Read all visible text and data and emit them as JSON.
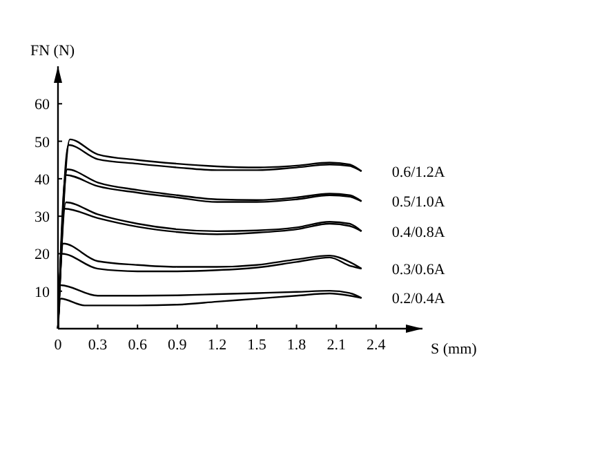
{
  "chart_data": {
    "type": "line",
    "xlabel": "S (mm)",
    "ylabel": "FN (N)",
    "xlim": [
      0,
      2.75
    ],
    "ylim": [
      0,
      70
    ],
    "xticks": [
      0,
      0.3,
      0.6,
      0.9,
      1.2,
      1.5,
      1.8,
      2.1,
      2.4
    ],
    "yticks": [
      {
        "value": 0,
        "label": null
      },
      10,
      20,
      30,
      40,
      50,
      60
    ],
    "grid": false,
    "legend": false,
    "marker": "none",
    "line_style": "solid",
    "series": [
      {
        "name": "0.2/0.4A",
        "color": "#000000",
        "x": [
          0,
          0.02,
          0.3,
          0.6,
          0.9,
          1.2,
          1.5,
          1.8,
          2.05,
          2.2,
          2.29
        ],
        "values": [
          0,
          11.6,
          8.8,
          8.8,
          8.9,
          9.2,
          9.5,
          9.8,
          10.1,
          9.5,
          8.2
        ]
      },
      {
        "color": "#000000",
        "x": [
          0,
          0.02,
          0.2,
          0.6,
          0.9,
          1.2,
          1.5,
          1.8,
          2.05,
          2.2,
          2.29
        ],
        "values": [
          0,
          8.0,
          6.2,
          6.2,
          6.4,
          7.2,
          8.0,
          8.8,
          9.4,
          8.8,
          8.2
        ]
      },
      {
        "name": "0.3/0.6A",
        "color": "#000000",
        "x": [
          0,
          0.04,
          0.3,
          0.6,
          0.9,
          1.2,
          1.5,
          1.8,
          2.05,
          2.2,
          2.29
        ],
        "values": [
          0,
          22.7,
          18,
          17,
          16.5,
          16.5,
          17,
          18.5,
          19.5,
          17.8,
          16
        ]
      },
      {
        "color": "#000000",
        "x": [
          0,
          0.03,
          0.3,
          0.6,
          0.9,
          1.2,
          1.5,
          1.8,
          2.05,
          2.2,
          2.29
        ],
        "values": [
          0,
          20,
          16,
          15.3,
          15.3,
          15.6,
          16.3,
          17.8,
          19,
          16.8,
          16
        ]
      },
      {
        "name": "0.4/0.8A",
        "color": "#000000",
        "x": [
          0,
          0.06,
          0.3,
          0.6,
          0.9,
          1.2,
          1.5,
          1.8,
          2.05,
          2.2,
          2.29
        ],
        "values": [
          0,
          33.7,
          30.5,
          28,
          26.5,
          26,
          26.2,
          27,
          28.5,
          28,
          26
        ]
      },
      {
        "color": "#000000",
        "x": [
          0,
          0.05,
          0.3,
          0.6,
          0.9,
          1.2,
          1.5,
          1.8,
          2.05,
          2.2,
          2.29
        ],
        "values": [
          0,
          32,
          29.5,
          27.2,
          25.8,
          25.2,
          25.6,
          26.5,
          28,
          27.4,
          26
        ]
      },
      {
        "name": "0.5/1.0A",
        "color": "#000000",
        "x": [
          0,
          0.07,
          0.3,
          0.6,
          0.9,
          1.2,
          1.5,
          1.8,
          2.05,
          2.2,
          2.29
        ],
        "values": [
          0,
          42.5,
          39,
          37,
          35.6,
          34.5,
          34.3,
          35,
          36,
          35.6,
          34
        ]
      },
      {
        "color": "#000000",
        "x": [
          0,
          0.06,
          0.3,
          0.6,
          0.9,
          1.2,
          1.5,
          1.8,
          2.05,
          2.2,
          2.29
        ],
        "values": [
          0,
          41,
          38,
          36.3,
          35,
          33.8,
          33.8,
          34.5,
          35.6,
          35.2,
          34
        ]
      },
      {
        "name": "0.6/1.2A",
        "color": "#000000",
        "x": [
          0,
          0.09,
          0.3,
          0.6,
          0.9,
          1.2,
          1.5,
          1.8,
          2.05,
          2.2,
          2.29
        ],
        "values": [
          0,
          50.5,
          46.5,
          45,
          44,
          43.3,
          43,
          43.5,
          44.3,
          43.8,
          42
        ]
      },
      {
        "color": "#000000",
        "x": [
          0,
          0.08,
          0.3,
          0.6,
          0.9,
          1.2,
          1.5,
          1.8,
          2.05,
          2.2,
          2.29
        ],
        "values": [
          0,
          49,
          45.2,
          44,
          43,
          42.3,
          42.3,
          43,
          43.8,
          43.4,
          42
        ]
      }
    ]
  }
}
